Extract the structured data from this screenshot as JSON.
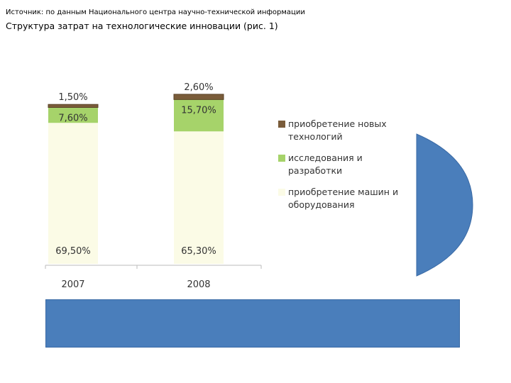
{
  "header": {
    "source": "Источник: по данным Национального центра научно-технической информации",
    "title": "Структура затрат на технологические инновации (рис. 1)"
  },
  "colors": {
    "series_technologies": "#7a5c3a",
    "series_rnd": "#a6d36a",
    "series_equipment": "#fbfbe6",
    "blue_shape": "#4a7ebb"
  },
  "chart_data": {
    "type": "bar",
    "stacked": true,
    "categories": [
      "2007",
      "2008"
    ],
    "series": [
      {
        "name": "приобретение машин и оборудования",
        "values": [
          69.5,
          65.3
        ],
        "labels": [
          "69,50%",
          "65,30%"
        ]
      },
      {
        "name": "исследования и разработки",
        "values": [
          7.6,
          15.7
        ],
        "labels": [
          "7,60%",
          "15,70%"
        ]
      },
      {
        "name": "приобретение новых технологий",
        "values": [
          1.5,
          2.6
        ],
        "labels": [
          "1,50%",
          "2,60%"
        ]
      }
    ],
    "legend": [
      {
        "line1": "приобретение новых",
        "line2": "технологий"
      },
      {
        "line1": "исследования и",
        "line2": "разработки"
      },
      {
        "line1": "приобретение машин и",
        "line2": "оборудования"
      }
    ],
    "legend_position": "right",
    "grid": false
  }
}
